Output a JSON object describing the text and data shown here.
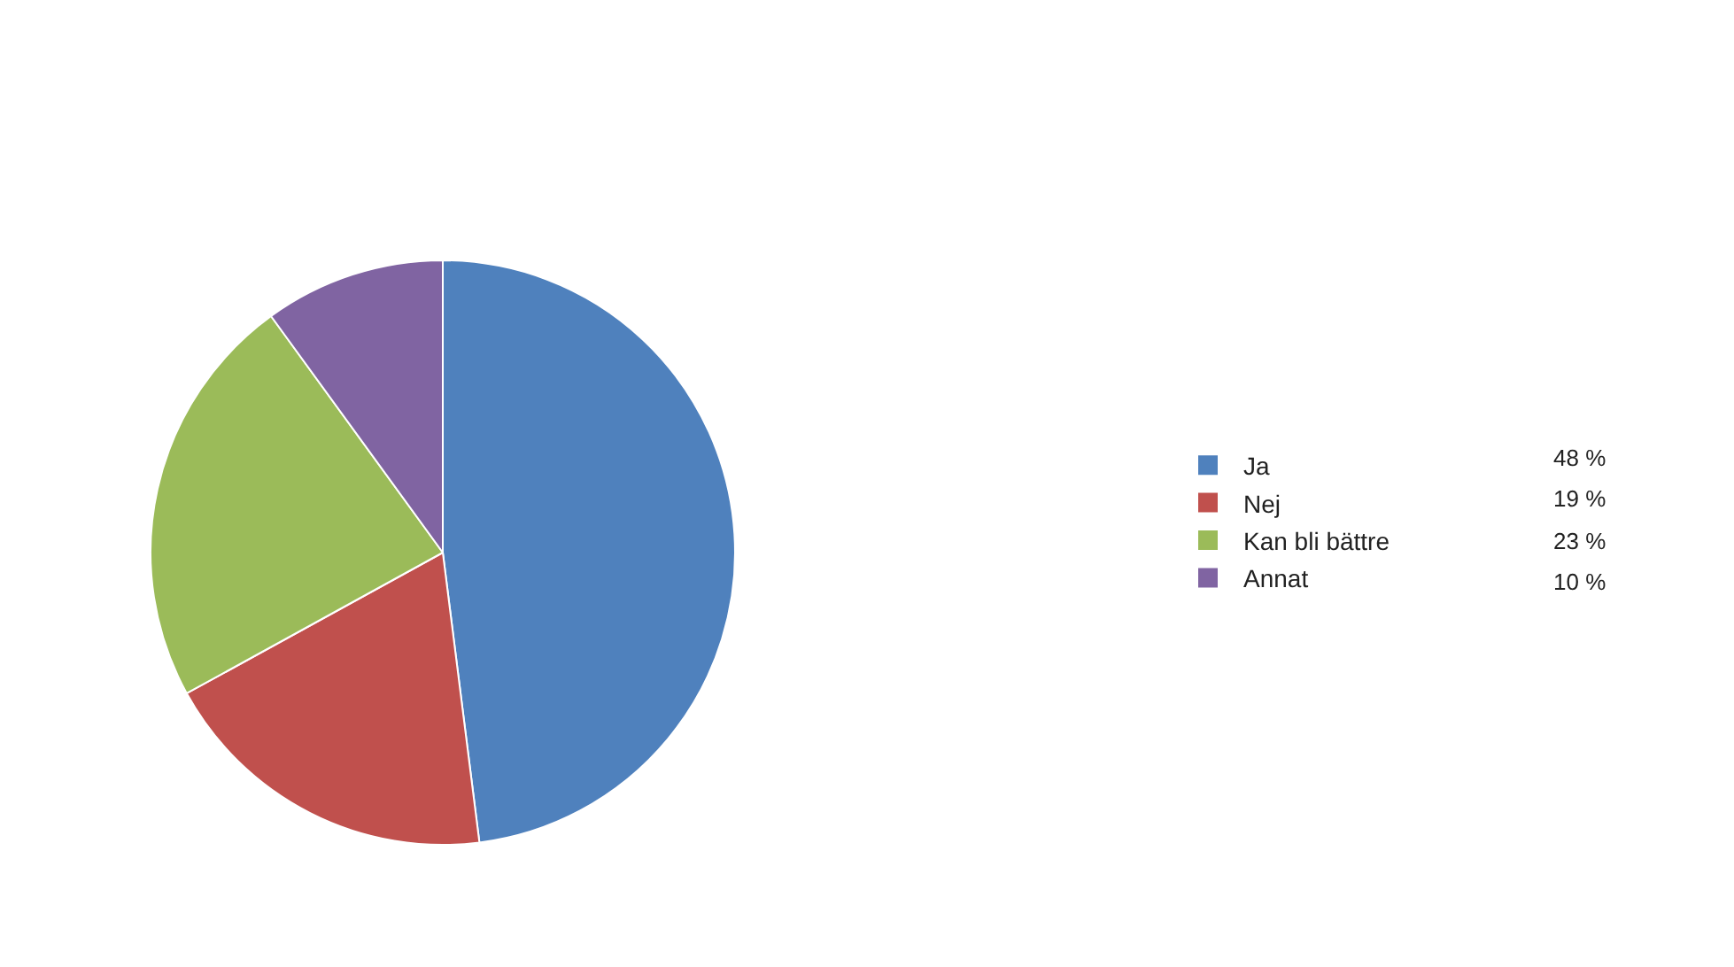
{
  "chart_data": {
    "type": "pie",
    "categories": [
      "Ja",
      "Nej",
      "Kan bli bättre",
      "Annat"
    ],
    "values": [
      48,
      19,
      23,
      10
    ],
    "colors": [
      "#4f81bd",
      "#c0504d",
      "#9bbb59",
      "#8064a2"
    ],
    "value_labels": [
      "48 %",
      "19 %",
      "23 %",
      "10 %"
    ],
    "legend": "right"
  }
}
